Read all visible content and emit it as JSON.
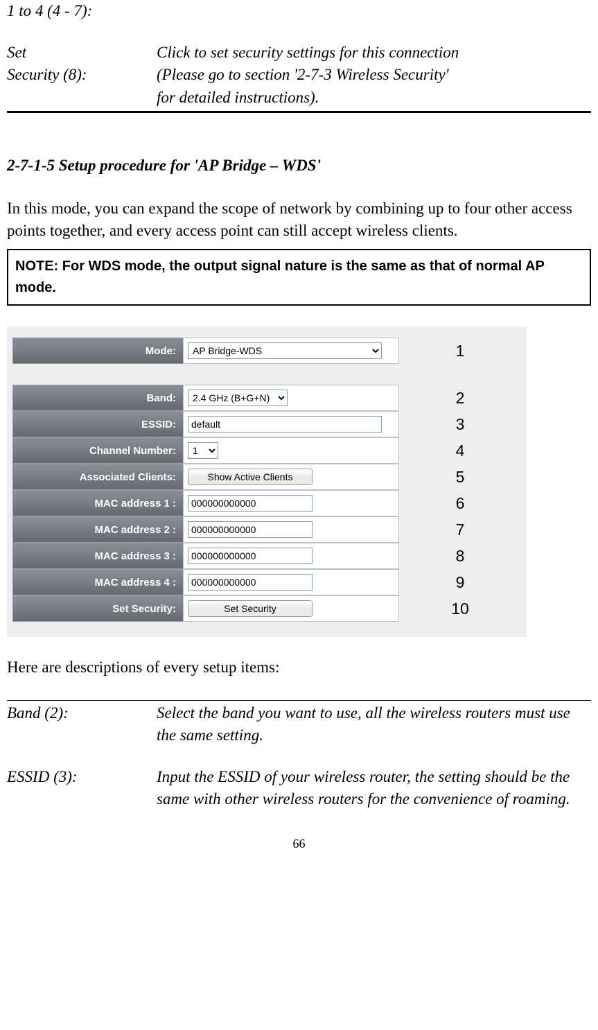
{
  "top": {
    "item1": "1 to 4 (4 - 7):",
    "item2_label_line1": "Set",
    "item2_label_line2": "Security (8):",
    "item2_desc_line1": "Click to set security settings for this connection",
    "item2_desc_line2": "(Please go to section '2-7-3 Wireless Security'",
    "item2_desc_line3": "for detailed instructions)."
  },
  "section": {
    "heading": "2-7-1-5 Setup procedure for 'AP Bridge – WDS'",
    "para": "In this mode, you can expand the scope of network by combining up to four other access points together, and every access point can still accept wireless clients.",
    "note": "NOTE: For WDS mode, the output signal nature is the same as that of normal AP mode."
  },
  "config": {
    "background_color": "#eeeeee",
    "label_gradient_top": "#8a8e96",
    "label_gradient_bottom": "#66696f",
    "label_text_color": "#ffffff",
    "value_bg": "#ffffff",
    "border_color": "#c0c0c0",
    "control_border": "#7f9db9",
    "rows": [
      {
        "label": "Mode:",
        "type": "select",
        "value": "AP Bridge-WDS",
        "annotation": "1",
        "class": "mode-select"
      },
      {
        "label": "Band:",
        "type": "select",
        "value": "2.4 GHz (B+G+N)",
        "annotation": "2",
        "class": "band-select"
      },
      {
        "label": "ESSID:",
        "type": "text",
        "value": "default",
        "annotation": "3",
        "class": "essid-input"
      },
      {
        "label": "Channel Number:",
        "type": "select",
        "value": "1",
        "annotation": "4",
        "class": "channel-select"
      },
      {
        "label": "Associated Clients:",
        "type": "button",
        "value": "Show Active Clients",
        "annotation": "5"
      },
      {
        "label": "MAC address 1 :",
        "type": "text",
        "value": "000000000000",
        "annotation": "6",
        "class": "mac-input"
      },
      {
        "label": "MAC address 2 :",
        "type": "text",
        "value": "000000000000",
        "annotation": "7",
        "class": "mac-input"
      },
      {
        "label": "MAC address 3 :",
        "type": "text",
        "value": "000000000000",
        "annotation": "8",
        "class": "mac-input"
      },
      {
        "label": "MAC address 4 :",
        "type": "text",
        "value": "000000000000",
        "annotation": "9",
        "class": "mac-input"
      },
      {
        "label": "Set Security:",
        "type": "button",
        "value": "Set Security",
        "annotation": "10"
      }
    ]
  },
  "descriptions": {
    "intro": "Here are descriptions of every setup items:",
    "items": [
      {
        "label": "Band (2):",
        "text": "Select the band you want to use, all the wireless routers must use the same setting."
      },
      {
        "label": "ESSID (3):",
        "text": "Input the ESSID of your wireless router, the setting should be the same with other wireless routers for the convenience of roaming."
      }
    ]
  },
  "page_number": "66"
}
